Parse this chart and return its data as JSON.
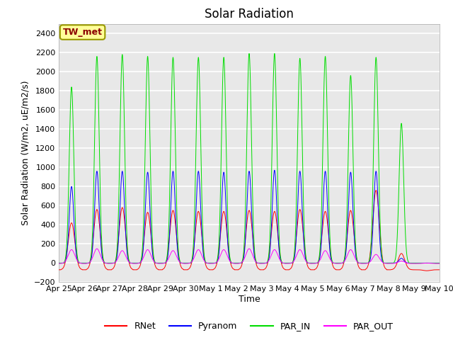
{
  "title": "Solar Radiation",
  "ylabel": "Solar Radiation (W/m2, uE/m2/s)",
  "xlabel": "Time",
  "ylim": [
    -200,
    2500
  ],
  "yticks": [
    -200,
    0,
    200,
    400,
    600,
    800,
    1000,
    1200,
    1400,
    1600,
    1800,
    2000,
    2200,
    2400
  ],
  "plot_bg_color": "#e8e8e8",
  "fig_bg_color": "#ffffff",
  "grid_color": "#ffffff",
  "station_label": "TW_met",
  "station_label_color": "#8b0000",
  "station_box_color": "#ffff99",
  "station_box_edge": "#999900",
  "colors": {
    "RNet": "#ff0000",
    "Pyranom": "#0000ff",
    "PAR_IN": "#00dd00",
    "PAR_OUT": "#ff00ff"
  },
  "legend_entries": [
    "RNet",
    "Pyranom",
    "PAR_IN",
    "PAR_OUT"
  ],
  "title_fontsize": 12,
  "label_fontsize": 9,
  "tick_fontsize": 8,
  "n_days": 15,
  "day_labels": [
    "Apr 25",
    "Apr 26",
    "Apr 27",
    "Apr 28",
    "Apr 29",
    "Apr 30",
    "May 1",
    "May 2",
    "May 3",
    "May 4",
    "May 5",
    "May 6",
    "May 7",
    "May 8",
    "May 9",
    "May 10"
  ],
  "rnet_peaks": [
    420,
    560,
    580,
    530,
    550,
    540,
    540,
    550,
    540,
    560,
    540,
    550,
    760,
    100,
    -80
  ],
  "pyranom_peaks": [
    800,
    960,
    960,
    950,
    960,
    960,
    950,
    960,
    970,
    960,
    960,
    950,
    960,
    50,
    0
  ],
  "par_in_peaks": [
    1840,
    2160,
    2180,
    2160,
    2150,
    2150,
    2150,
    2190,
    2190,
    2140,
    2160,
    1960,
    2150,
    1460,
    0
  ],
  "par_out_peaks": [
    140,
    150,
    130,
    140,
    130,
    140,
    140,
    150,
    140,
    140,
    130,
    140,
    90,
    20,
    0
  ],
  "rnet_night": -70,
  "par_out_night": -5,
  "samples_per_day": 288
}
